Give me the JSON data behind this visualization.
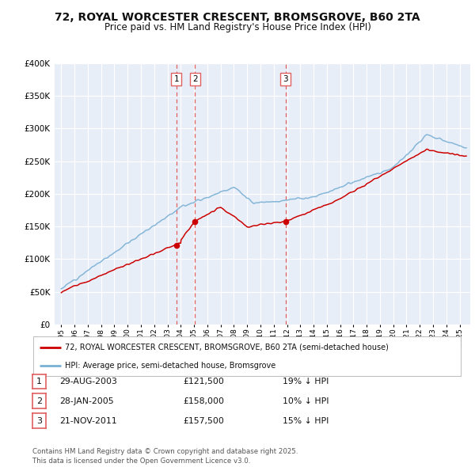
{
  "title": "72, ROYAL WORCESTER CRESCENT, BROMSGROVE, B60 2TA",
  "subtitle": "Price paid vs. HM Land Registry's House Price Index (HPI)",
  "title_fontsize": 10,
  "subtitle_fontsize": 8.5,
  "background_color": "#ffffff",
  "plot_bg_color": "#e8eef8",
  "grid_color": "#ffffff",
  "sale_color": "#cc0000",
  "hpi_color": "#7ab0d4",
  "sale_dates": [
    2003.66,
    2005.08,
    2011.9
  ],
  "sale_prices": [
    121500,
    158000,
    157500
  ],
  "sale_labels": [
    "1",
    "2",
    "3"
  ],
  "vline_color": "#e06060",
  "legend_sale_label": "72, ROYAL WORCESTER CRESCENT, BROMSGROVE, B60 2TA (semi-detached house)",
  "legend_hpi_label": "HPI: Average price, semi-detached house, Bromsgrove",
  "table_rows": [
    {
      "label": "1",
      "date": "29-AUG-2003",
      "price": "£121,500",
      "note": "19% ↓ HPI"
    },
    {
      "label": "2",
      "date": "28-JAN-2005",
      "price": "£158,000",
      "note": "10% ↓ HPI"
    },
    {
      "label": "3",
      "date": "21-NOV-2011",
      "price": "£157,500",
      "note": "15% ↓ HPI"
    }
  ],
  "footer": "Contains HM Land Registry data © Crown copyright and database right 2025.\nThis data is licensed under the Open Government Licence v3.0.",
  "ylim": [
    0,
    400000
  ],
  "xlim_start": 1994.5,
  "xlim_end": 2025.8
}
